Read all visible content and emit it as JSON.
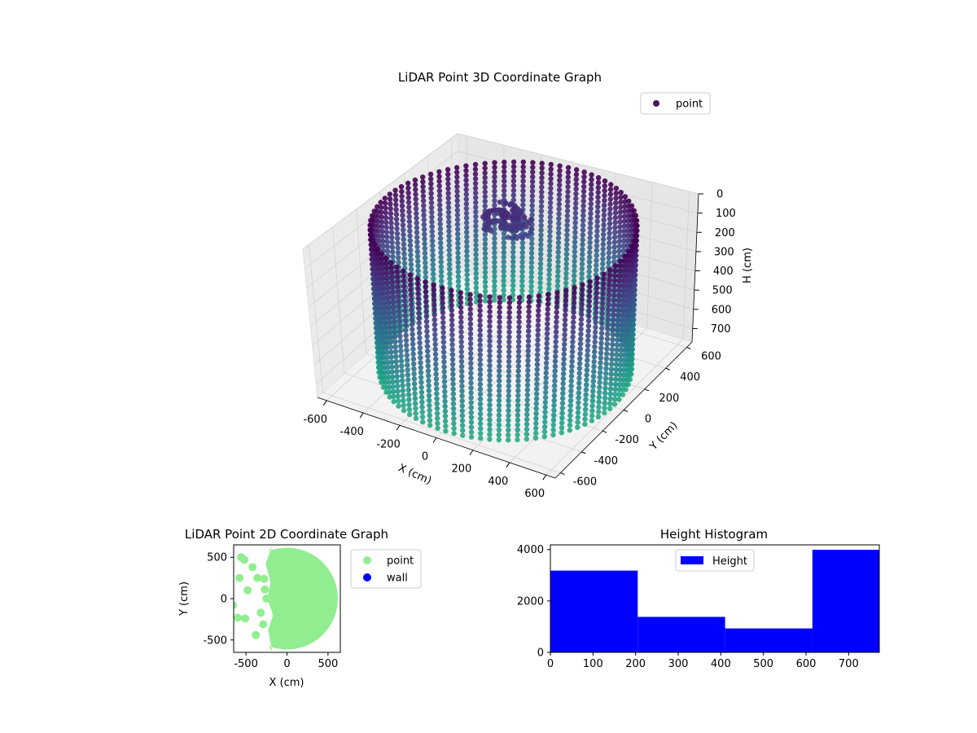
{
  "chart_data": [
    {
      "type": "scatter3d",
      "title": "LiDAR Point 3D Coordinate Graph",
      "xlabel": "X (cm)",
      "ylabel": "Y (cm)",
      "zlabel": "H (cm)",
      "xlim": [
        -650,
        650
      ],
      "ylim": [
        -650,
        650
      ],
      "zlim": [
        0,
        770
      ],
      "z_inverted": true,
      "x_ticks": [
        -600,
        -400,
        -200,
        0,
        200,
        400,
        600
      ],
      "y_ticks": [
        -600,
        -400,
        -200,
        0,
        200,
        400,
        600
      ],
      "z_ticks": [
        0,
        100,
        200,
        300,
        400,
        500,
        600,
        700
      ],
      "legend": {
        "entries": [
          "point"
        ],
        "placement": "upper-right"
      },
      "colormap": "viridis",
      "grid": true,
      "structures": {
        "cylinder_wall": {
          "radius": 600,
          "h_min": 0,
          "h_max": 770
        },
        "interior_cluster": {
          "x": -200,
          "y": 350,
          "h": 200
        }
      }
    },
    {
      "type": "scatter",
      "title": "LiDAR Point 2D Coordinate Graph",
      "xlabel": "X (cm)",
      "ylabel": "Y (cm)",
      "xlim": [
        -650,
        650
      ],
      "ylim": [
        -650,
        650
      ],
      "x_ticks": [
        -500,
        0,
        500
      ],
      "y_ticks": [
        -500,
        0,
        500
      ],
      "legend": {
        "entries": [
          "point",
          "wall"
        ],
        "placement": "outside-right"
      },
      "series": [
        {
          "name": "point",
          "color": "#90ee90"
        },
        {
          "name": "wall",
          "color": "#0000ff"
        }
      ],
      "disk_radius": 620,
      "scattered_points": [
        [
          -560,
          500
        ],
        [
          -520,
          470
        ],
        [
          -420,
          380
        ],
        [
          -360,
          250
        ],
        [
          -580,
          250
        ],
        [
          -480,
          100
        ],
        [
          -270,
          110
        ],
        [
          -660,
          -80
        ],
        [
          -320,
          -170
        ],
        [
          -600,
          -230
        ],
        [
          -510,
          -240
        ],
        [
          -380,
          -440
        ],
        [
          -280,
          240
        ],
        [
          -250,
          0
        ],
        [
          -290,
          -310
        ]
      ]
    },
    {
      "type": "bar",
      "title": "Height Histogram",
      "xlim": [
        0,
        772
      ],
      "ylim": [
        0,
        4180
      ],
      "x_ticks": [
        0,
        100,
        200,
        300,
        400,
        500,
        600,
        700
      ],
      "y_ticks": [
        0,
        2000,
        4000
      ],
      "legend": {
        "entries": [
          "Height"
        ],
        "placement": "upper-center"
      },
      "bar_color": "#0000ff",
      "series": [
        {
          "name": "Height",
          "bins": [
            [
              0,
              205
            ],
            [
              205,
              410
            ],
            [
              410,
              615
            ],
            [
              615,
              772
            ]
          ],
          "values": [
            3180,
            1380,
            930,
            3990
          ]
        }
      ]
    }
  ]
}
